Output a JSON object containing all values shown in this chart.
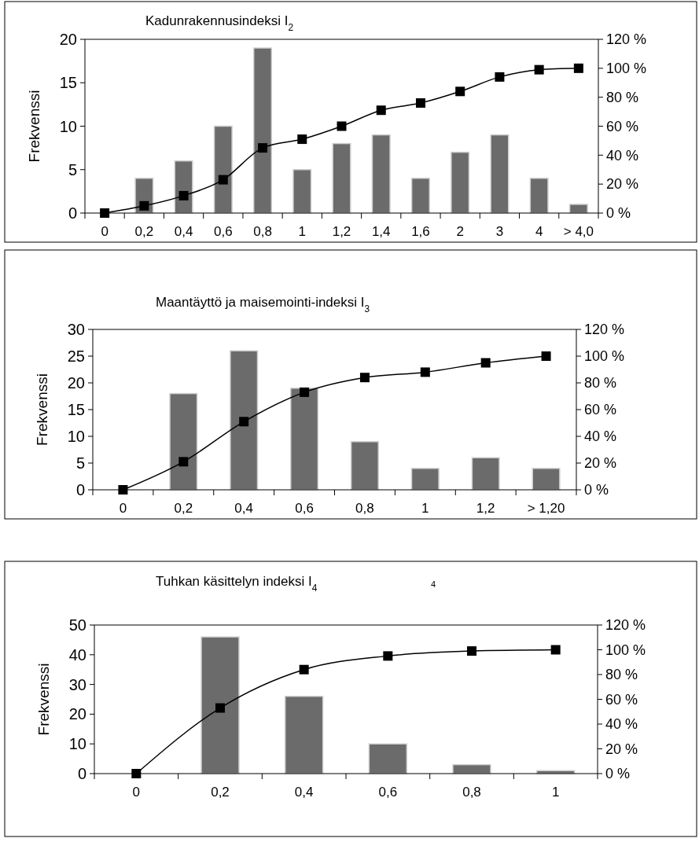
{
  "chart_data": [
    {
      "type": "bar",
      "title": "Kadunrakennusindeksi I$_{2}$",
      "ylabel": "Frekvenssi",
      "categories": [
        "0",
        "0,2",
        "0,4",
        "0,6",
        "0,8",
        "1",
        "1,2",
        "1,4",
        "1,6",
        "2",
        "3",
        "4",
        "> 4,0"
      ],
      "series": [
        {
          "color": "#6b6b6b",
          "values": [
            0,
            4,
            6,
            10,
            19,
            5,
            8,
            9,
            4,
            7,
            9,
            4,
            1
          ]
        },
        {
          "type": "line",
          "axis": "y2",
          "color": "#000000",
          "marker": "square",
          "values": [
            0,
            5,
            12,
            23,
            45,
            51,
            60,
            71,
            76,
            84,
            94,
            99,
            100
          ]
        }
      ],
      "ylim": [
        0,
        20
      ],
      "yticks": [
        0,
        5,
        10,
        15,
        20
      ],
      "y2lim": [
        0,
        120
      ],
      "y2ticks": [
        {
          "value": 0,
          "label": "0 %"
        },
        {
          "value": 20,
          "label": "20 %"
        },
        {
          "value": 40,
          "label": "40 %"
        },
        {
          "value": 60,
          "label": "60 %"
        },
        {
          "value": 80,
          "label": "80 %"
        },
        {
          "value": 100,
          "label": "100 %"
        },
        {
          "value": 120,
          "label": "120 %"
        }
      ],
      "grid": false
    },
    {
      "type": "bar",
      "title": "Maantäyttö ja maisemointi-indeksi I$_{3}$",
      "ylabel": "Frekvenssi",
      "categories": [
        "0",
        "0,2",
        "0,4",
        "0,6",
        "0,8",
        "1",
        "1,2",
        "> 1,20"
      ],
      "series": [
        {
          "color": "#6b6b6b",
          "values": [
            0,
            18,
            26,
            19,
            9,
            4,
            6,
            4
          ]
        },
        {
          "type": "line",
          "axis": "y2",
          "color": "#000000",
          "marker": "square",
          "values": [
            0,
            21,
            51,
            73,
            84,
            88,
            95,
            100
          ]
        }
      ],
      "ylim": [
        0,
        30
      ],
      "yticks": [
        0,
        5,
        10,
        15,
        20,
        25,
        30
      ],
      "y2lim": [
        0,
        120
      ],
      "y2ticks": [
        {
          "value": 0,
          "label": "0 %"
        },
        {
          "value": 20,
          "label": "20 %"
        },
        {
          "value": 40,
          "label": "40 %"
        },
        {
          "value": 60,
          "label": "60 %"
        },
        {
          "value": 80,
          "label": "80 %"
        },
        {
          "value": 100,
          "label": "100 %"
        },
        {
          "value": 120,
          "label": "120 %"
        }
      ],
      "grid": false
    },
    {
      "type": "bar",
      "title": "Tuhkan käsittelyn indeksi I$_{4}$",
      "ylabel": "Frekvenssi",
      "annotations": [
        "4"
      ],
      "categories": [
        "0",
        "0,2",
        "0,4",
        "0,6",
        "0,8",
        "1"
      ],
      "series": [
        {
          "color": "#6b6b6b",
          "values": [
            0,
            46,
            26,
            10,
            3,
            1
          ]
        },
        {
          "type": "line",
          "axis": "y2",
          "color": "#000000",
          "marker": "square",
          "values": [
            0,
            53,
            84,
            95,
            99,
            100
          ]
        }
      ],
      "ylim": [
        0,
        50
      ],
      "yticks": [
        0,
        10,
        20,
        30,
        40,
        50
      ],
      "y2lim": [
        0,
        120
      ],
      "y2ticks": [
        {
          "value": 0,
          "label": "0 %"
        },
        {
          "value": 20,
          "label": "20 %"
        },
        {
          "value": 40,
          "label": "40 %"
        },
        {
          "value": 60,
          "label": "60 %"
        },
        {
          "value": 80,
          "label": "80 %"
        },
        {
          "value": 100,
          "label": "100 %"
        },
        {
          "value": 120,
          "label": "120 %"
        }
      ],
      "grid": false
    }
  ]
}
